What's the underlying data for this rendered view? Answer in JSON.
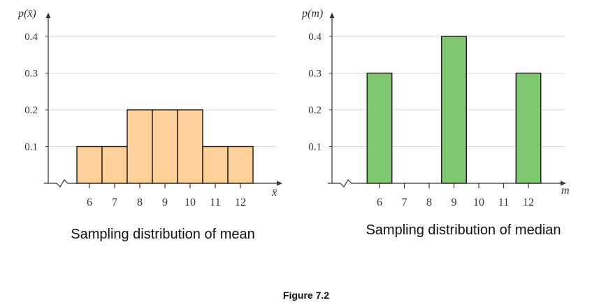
{
  "figure_label": "Figure 7.2",
  "chart_data": [
    {
      "type": "bar",
      "ylabel": "p(x̄)",
      "xlabel": "x̄",
      "caption": "Sampling distribution of mean",
      "categories": [
        "6",
        "7",
        "8",
        "9",
        "10",
        "11",
        "12"
      ],
      "x_ticks": [
        6,
        7,
        8,
        9,
        10,
        11,
        12
      ],
      "values": [
        0.1,
        0.1,
        0.2,
        0.2,
        0.2,
        0.1,
        0.1
      ],
      "y_ticks": [
        "0.1",
        "0.2",
        "0.3",
        "0.4"
      ],
      "ylim": [
        0,
        0.4
      ],
      "grid": true,
      "bar_color": "#FDD199"
    },
    {
      "type": "bar",
      "ylabel": "p(m)",
      "xlabel": "m",
      "caption": "Sampling distribution of median",
      "categories": [
        "6",
        "7",
        "8",
        "9",
        "10",
        "11",
        "12"
      ],
      "x_ticks": [
        6,
        7,
        8,
        9,
        10,
        11,
        12
      ],
      "values": [
        0.3,
        0,
        0,
        0.4,
        0,
        0,
        0.3
      ],
      "y_ticks": [
        "0.1",
        "0.2",
        "0.3",
        "0.4"
      ],
      "ylim": [
        0,
        0.4
      ],
      "grid": true,
      "bar_color": "#80C870"
    }
  ]
}
